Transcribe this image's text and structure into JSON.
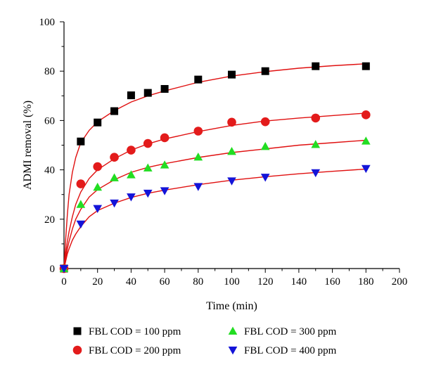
{
  "chart_data": {
    "type": "scatter",
    "xlabel": "Time (min)",
    "ylabel": "ADMI removal (%)",
    "xlim": [
      0,
      200
    ],
    "ylim": [
      0,
      100
    ],
    "xticks": [
      0,
      20,
      40,
      60,
      80,
      100,
      120,
      140,
      160,
      180,
      200
    ],
    "yticks": [
      0,
      20,
      40,
      60,
      80,
      100
    ],
    "grid": false,
    "legend_position": "bottom",
    "fit_line_color": "#e01010",
    "series": [
      {
        "name": "FBL COD = 100 ppm",
        "marker": "square",
        "color": "#000000",
        "x": [
          0,
          10,
          20,
          30,
          40,
          50,
          60,
          80,
          100,
          120,
          150,
          180
        ],
        "y": [
          0,
          51.5,
          59.2,
          63.8,
          70.2,
          71.2,
          72.8,
          76.6,
          78.6,
          80.0,
          82.0,
          82.0
        ],
        "fit": [
          [
            1,
            12
          ],
          [
            2,
            22
          ],
          [
            3,
            30
          ],
          [
            5,
            39
          ],
          [
            7,
            45
          ],
          [
            10,
            51
          ],
          [
            15,
            56
          ],
          [
            20,
            59.5
          ],
          [
            30,
            64
          ],
          [
            40,
            67.5
          ],
          [
            50,
            70
          ],
          [
            60,
            72
          ],
          [
            80,
            75.5
          ],
          [
            100,
            78
          ],
          [
            120,
            79.8
          ],
          [
            140,
            81.2
          ],
          [
            160,
            82.2
          ],
          [
            180,
            83
          ]
        ]
      },
      {
        "name": "FBL COD = 200 ppm",
        "marker": "circle",
        "color": "#e31b1b",
        "x": [
          0,
          10,
          20,
          30,
          40,
          50,
          60,
          80,
          100,
          120,
          150,
          180
        ],
        "y": [
          0,
          34.3,
          41.3,
          45.1,
          48.0,
          50.7,
          53.0,
          55.7,
          59.3,
          59.5,
          61.0,
          62.3
        ],
        "fit": [
          [
            1,
            6
          ],
          [
            2,
            11
          ],
          [
            3,
            15
          ],
          [
            5,
            21
          ],
          [
            7,
            26
          ],
          [
            10,
            31
          ],
          [
            15,
            36.5
          ],
          [
            20,
            40
          ],
          [
            30,
            44.5
          ],
          [
            40,
            48
          ],
          [
            50,
            50.5
          ],
          [
            60,
            52.5
          ],
          [
            80,
            55.5
          ],
          [
            100,
            58
          ],
          [
            120,
            59.8
          ],
          [
            140,
            61
          ],
          [
            160,
            62
          ],
          [
            180,
            63
          ]
        ]
      },
      {
        "name": "FBL COD = 300 ppm",
        "marker": "triangle-up",
        "color": "#22dd22",
        "x": [
          0,
          10,
          20,
          30,
          40,
          50,
          60,
          80,
          100,
          120,
          150,
          180
        ],
        "y": [
          0,
          26.0,
          33.0,
          36.8,
          38.0,
          40.8,
          42.0,
          45.2,
          47.5,
          49.5,
          50.3,
          51.7
        ],
        "fit": [
          [
            1,
            4
          ],
          [
            2,
            8
          ],
          [
            3,
            11
          ],
          [
            5,
            16
          ],
          [
            7,
            20
          ],
          [
            10,
            24
          ],
          [
            15,
            29
          ],
          [
            20,
            32
          ],
          [
            30,
            36
          ],
          [
            40,
            39
          ],
          [
            50,
            41
          ],
          [
            60,
            42.5
          ],
          [
            80,
            45
          ],
          [
            100,
            47
          ],
          [
            120,
            48.5
          ],
          [
            140,
            50
          ],
          [
            160,
            51
          ],
          [
            180,
            52
          ]
        ]
      },
      {
        "name": "FBL COD = 400 ppm",
        "marker": "triangle-down",
        "color": "#1414d8",
        "x": [
          0,
          10,
          20,
          30,
          40,
          50,
          60,
          80,
          100,
          120,
          150,
          180
        ],
        "y": [
          0,
          18.0,
          24.3,
          26.5,
          29.0,
          30.5,
          31.5,
          33.2,
          35.5,
          37.0,
          38.8,
          40.5
        ],
        "fit": [
          [
            1,
            3
          ],
          [
            2,
            6
          ],
          [
            3,
            8
          ],
          [
            5,
            11.5
          ],
          [
            7,
            14
          ],
          [
            10,
            17
          ],
          [
            15,
            21
          ],
          [
            20,
            23.5
          ],
          [
            30,
            26.5
          ],
          [
            40,
            28.8
          ],
          [
            50,
            30.5
          ],
          [
            60,
            31.8
          ],
          [
            80,
            34
          ],
          [
            100,
            35.8
          ],
          [
            120,
            37.2
          ],
          [
            140,
            38.4
          ],
          [
            160,
            39.4
          ],
          [
            180,
            40.3
          ]
        ]
      }
    ]
  }
}
